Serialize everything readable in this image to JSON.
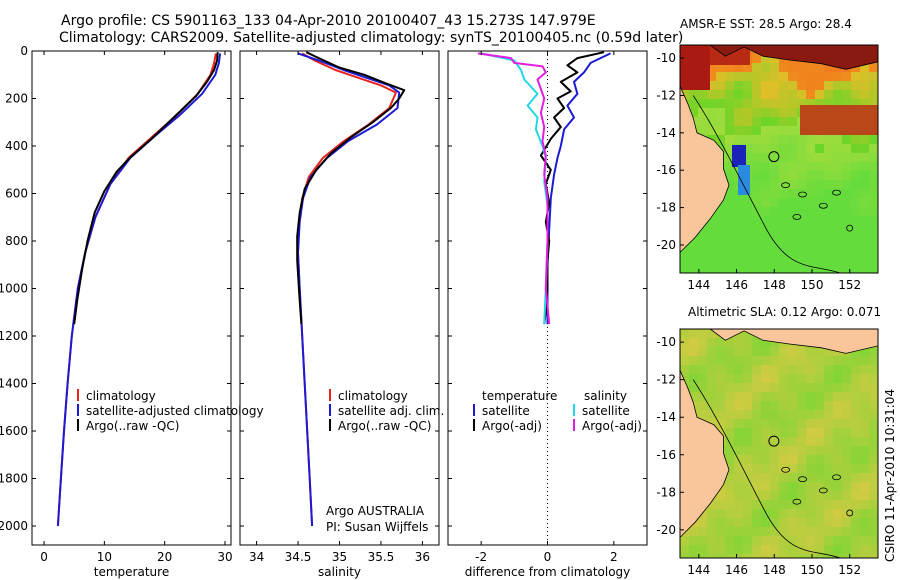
{
  "header": {
    "title_line1": "Argo profile: CS 5901163_133 04-Apr-2010 20100407_43 15.273S 147.979E",
    "title_line2": "Climatology: CARS2009. Satellite-adjusted climatology: synTS_20100405.nc (0.59d later)"
  },
  "colors": {
    "climatology": "#e8231e",
    "satellite": "#1b1bd6",
    "argo": "#000000",
    "satellite_salinity": "#22d8e8",
    "argo_salinity": "#e31ee0",
    "land": "#f8c69a"
  },
  "chart_data": [
    {
      "type": "line",
      "id": "temperature",
      "xlabel": "temperature",
      "ylabel": "",
      "xlim": [
        -2,
        31
      ],
      "ylim": [
        0,
        2080
      ],
      "xticks": [
        "0",
        "10",
        "20",
        "30"
      ],
      "xtick_values": [
        0,
        10,
        20,
        30
      ],
      "yticks": [
        "0",
        "200",
        "400",
        "600",
        "800",
        "1000",
        "1200",
        "1400",
        "1600",
        "1800",
        "2000"
      ],
      "ytick_values": [
        0,
        200,
        400,
        600,
        800,
        1000,
        1200,
        1400,
        1600,
        1800,
        2000
      ],
      "legend": [
        "climatology",
        "satellite-adjusted climatology",
        "Argo(..raw -QC)"
      ],
      "series": [
        {
          "name": "climatology",
          "color_key": "climatology",
          "points": [
            [
              28.5,
              10
            ],
            [
              28.2,
              50
            ],
            [
              27.6,
              100
            ],
            [
              25.5,
              180
            ],
            [
              22,
              270
            ],
            [
              18,
              360
            ],
            [
              14,
              450
            ],
            [
              11,
              560
            ],
            [
              8.5,
              700
            ],
            [
              6.8,
              850
            ],
            [
              5.6,
              1000
            ],
            [
              4.6,
              1200
            ],
            [
              3.9,
              1400
            ],
            [
              3.3,
              1600
            ],
            [
              2.8,
              1800
            ],
            [
              2.3,
              2000
            ]
          ]
        },
        {
          "name": "satellite-adjusted climatology",
          "color_key": "satellite",
          "points": [
            [
              29.2,
              10
            ],
            [
              29,
              50
            ],
            [
              28.4,
              100
            ],
            [
              26.2,
              180
            ],
            [
              22.5,
              270
            ],
            [
              18.3,
              360
            ],
            [
              14.3,
              450
            ],
            [
              11,
              560
            ],
            [
              8.5,
              700
            ],
            [
              6.8,
              850
            ],
            [
              5.6,
              1000
            ],
            [
              4.6,
              1200
            ],
            [
              3.9,
              1400
            ],
            [
              3.3,
              1600
            ],
            [
              2.8,
              1800
            ],
            [
              2.3,
              2000
            ]
          ]
        },
        {
          "name": "Argo(..raw -QC)",
          "color_key": "argo",
          "points": [
            [
              28.8,
              5
            ],
            [
              28.7,
              40
            ],
            [
              28.2,
              80
            ],
            [
              27,
              130
            ],
            [
              25.2,
              190
            ],
            [
              21.5,
              280
            ],
            [
              17.8,
              370
            ],
            [
              14.2,
              450
            ],
            [
              12,
              510
            ],
            [
              10,
              590
            ],
            [
              8.4,
              680
            ],
            [
              7.2,
              800
            ],
            [
              6.3,
              920
            ],
            [
              5.5,
              1050
            ],
            [
              5,
              1150
            ]
          ]
        }
      ]
    },
    {
      "type": "line",
      "id": "salinity",
      "xlabel": "salinity",
      "xlim": [
        33.8,
        36.2
      ],
      "ylim": [
        0,
        2080
      ],
      "xticks": [
        "34",
        "34.5",
        "35",
        "35.5",
        "36"
      ],
      "xtick_values": [
        34,
        34.5,
        35,
        35.5,
        36
      ],
      "legend": [
        "climatology",
        "satellite adj. clim.",
        "Argo(..raw -QC)"
      ],
      "series": [
        {
          "name": "climatology",
          "color_key": "climatology",
          "points": [
            [
              34.55,
              10
            ],
            [
              34.7,
              40
            ],
            [
              34.95,
              80
            ],
            [
              35.2,
              110
            ],
            [
              35.5,
              145
            ],
            [
              35.68,
              175
            ],
            [
              35.6,
              240
            ],
            [
              35.35,
              310
            ],
            [
              35.05,
              380
            ],
            [
              34.8,
              450
            ],
            [
              34.63,
              530
            ],
            [
              34.55,
              620
            ],
            [
              34.51,
              720
            ],
            [
              34.5,
              850
            ],
            [
              34.52,
              1000
            ],
            [
              34.55,
              1200
            ],
            [
              34.58,
              1400
            ],
            [
              34.61,
              1600
            ],
            [
              34.64,
              1800
            ],
            [
              34.67,
              2000
            ]
          ]
        },
        {
          "name": "satellite adj. clim.",
          "color_key": "satellite",
          "points": [
            [
              34.5,
              10
            ],
            [
              34.75,
              40
            ],
            [
              35.05,
              80
            ],
            [
              35.3,
              110
            ],
            [
              35.6,
              145
            ],
            [
              35.72,
              175
            ],
            [
              35.7,
              240
            ],
            [
              35.45,
              310
            ],
            [
              35.1,
              380
            ],
            [
              34.85,
              450
            ],
            [
              34.65,
              530
            ],
            [
              34.56,
              620
            ],
            [
              34.52,
              720
            ],
            [
              34.5,
              850
            ],
            [
              34.52,
              1000
            ],
            [
              34.55,
              1200
            ],
            [
              34.58,
              1400
            ],
            [
              34.61,
              1600
            ],
            [
              34.64,
              1800
            ],
            [
              34.67,
              2000
            ]
          ]
        },
        {
          "name": "Argo(..raw -QC)",
          "color_key": "argo",
          "points": [
            [
              34.6,
              5
            ],
            [
              34.75,
              30
            ],
            [
              35,
              70
            ],
            [
              35.3,
              100
            ],
            [
              35.55,
              135
            ],
            [
              35.78,
              165
            ],
            [
              35.72,
              200
            ],
            [
              35.62,
              240
            ],
            [
              35.4,
              300
            ],
            [
              35.15,
              360
            ],
            [
              34.9,
              430
            ],
            [
              34.72,
              500
            ],
            [
              34.58,
              580
            ],
            [
              34.52,
              680
            ],
            [
              34.49,
              780
            ],
            [
              34.49,
              880
            ],
            [
              34.51,
              1000
            ],
            [
              34.53,
              1100
            ],
            [
              34.54,
              1150
            ]
          ]
        }
      ]
    },
    {
      "type": "line",
      "id": "difference",
      "xlabel": "difference from climatology",
      "xlim": [
        -3.0,
        3.0
      ],
      "ylim": [
        0,
        2080
      ],
      "xticks": [
        "-2",
        "0",
        "2"
      ],
      "xtick_values": [
        -2,
        0,
        2
      ],
      "legend_temperature_header": "temperature",
      "legend_salinity_header": "salinity",
      "legend_temperature": [
        "satellite",
        "Argo(-adj)"
      ],
      "legend_salinity": [
        "satellite",
        "Argo(-adj)"
      ],
      "series": [
        {
          "name": "temperature satellite",
          "color_key": "satellite",
          "points": [
            [
              1.9,
              10
            ],
            [
              1.3,
              50
            ],
            [
              1.1,
              90
            ],
            [
              0.8,
              130
            ],
            [
              0.9,
              180
            ],
            [
              0.6,
              230
            ],
            [
              0.8,
              280
            ],
            [
              0.5,
              330
            ],
            [
              0.4,
              400
            ],
            [
              0.3,
              450
            ],
            [
              0.2,
              520
            ],
            [
              0.1,
              620
            ],
            [
              0.05,
              750
            ],
            [
              0,
              900
            ],
            [
              0,
              1100
            ],
            [
              0,
              1150
            ]
          ]
        },
        {
          "name": "temperature Argo(-adj)",
          "color_key": "argo",
          "points": [
            [
              1.7,
              5
            ],
            [
              0.9,
              30
            ],
            [
              0.6,
              60
            ],
            [
              0.9,
              90
            ],
            [
              0.4,
              130
            ],
            [
              0.7,
              170
            ],
            [
              0.3,
              200
            ],
            [
              0.5,
              240
            ],
            [
              0.2,
              280
            ],
            [
              0.4,
              320
            ],
            [
              0.1,
              370
            ],
            [
              -0.2,
              440
            ],
            [
              0.1,
              500
            ],
            [
              -0.05,
              560
            ],
            [
              0.05,
              640
            ],
            [
              -0.05,
              720
            ],
            [
              0.05,
              800
            ],
            [
              0,
              880
            ],
            [
              0,
              1000
            ],
            [
              -0.05,
              1100
            ],
            [
              -0.1,
              1150
            ]
          ]
        },
        {
          "name": "salinity satellite",
          "color_key": "satellite_salinity",
          "points": [
            [
              -2,
              10
            ],
            [
              -1,
              40
            ],
            [
              -0.8,
              80
            ],
            [
              -0.7,
              120
            ],
            [
              -0.3,
              180
            ],
            [
              -0.6,
              230
            ],
            [
              -0.3,
              280
            ],
            [
              -0.35,
              330
            ],
            [
              -0.15,
              400
            ],
            [
              -0.05,
              450
            ],
            [
              -0.1,
              550
            ],
            [
              0,
              650
            ],
            [
              0,
              800
            ],
            [
              -0.05,
              1000
            ],
            [
              -0.1,
              1150
            ]
          ]
        },
        {
          "name": "salinity Argo(-adj)",
          "color_key": "argo_salinity",
          "points": [
            [
              -2.1,
              10
            ],
            [
              -1.1,
              30
            ],
            [
              -1,
              50
            ],
            [
              -0.15,
              65
            ],
            [
              -0.05,
              90
            ],
            [
              -0.3,
              120
            ],
            [
              -0.2,
              160
            ],
            [
              -0.1,
              200
            ],
            [
              -0.2,
              260
            ],
            [
              -0.1,
              320
            ],
            [
              -0.15,
              380
            ],
            [
              -0.05,
              440
            ],
            [
              -0.1,
              520
            ],
            [
              0,
              620
            ],
            [
              0,
              800
            ],
            [
              -0.05,
              1000
            ],
            [
              0.05,
              1150
            ]
          ]
        }
      ]
    },
    {
      "type": "heatmap",
      "id": "sst_map",
      "title": "AMSR-E SST: 28.5 Argo: 28.4",
      "xlim": [
        143,
        153.5
      ],
      "ylim": [
        -21.5,
        -9.3
      ],
      "xticks": [
        "144",
        "146",
        "148",
        "150",
        "152"
      ],
      "xtick_values": [
        144,
        146,
        148,
        150,
        152
      ],
      "yticks": [
        "-10",
        "-12",
        "-14",
        "-16",
        "-18",
        "-20"
      ],
      "ytick_values": [
        -10,
        -12,
        -14,
        -16,
        -18,
        -20
      ],
      "profile_position": [
        147.979,
        -15.273
      ]
    },
    {
      "type": "heatmap",
      "id": "sla_map",
      "title": "Altimetric SLA: 0.12 Argo: 0.071",
      "xlim": [
        143,
        153.5
      ],
      "ylim": [
        -21.5,
        -9.3
      ],
      "xticks": [
        "144",
        "146",
        "148",
        "150",
        "152"
      ],
      "xtick_values": [
        144,
        146,
        148,
        150,
        152
      ],
      "yticks": [
        "-10",
        "-12",
        "-14",
        "-16",
        "-18",
        "-20"
      ],
      "ytick_values": [
        -10,
        -12,
        -14,
        -16,
        -18,
        -20
      ],
      "profile_position": [
        147.979,
        -15.273
      ]
    }
  ],
  "annotations": {
    "float_owner": "Argo AUSTRALIA",
    "pi": "PI: Susan Wijffels",
    "stamp": "CSIRO 11-Apr-2010 10:31:04"
  }
}
